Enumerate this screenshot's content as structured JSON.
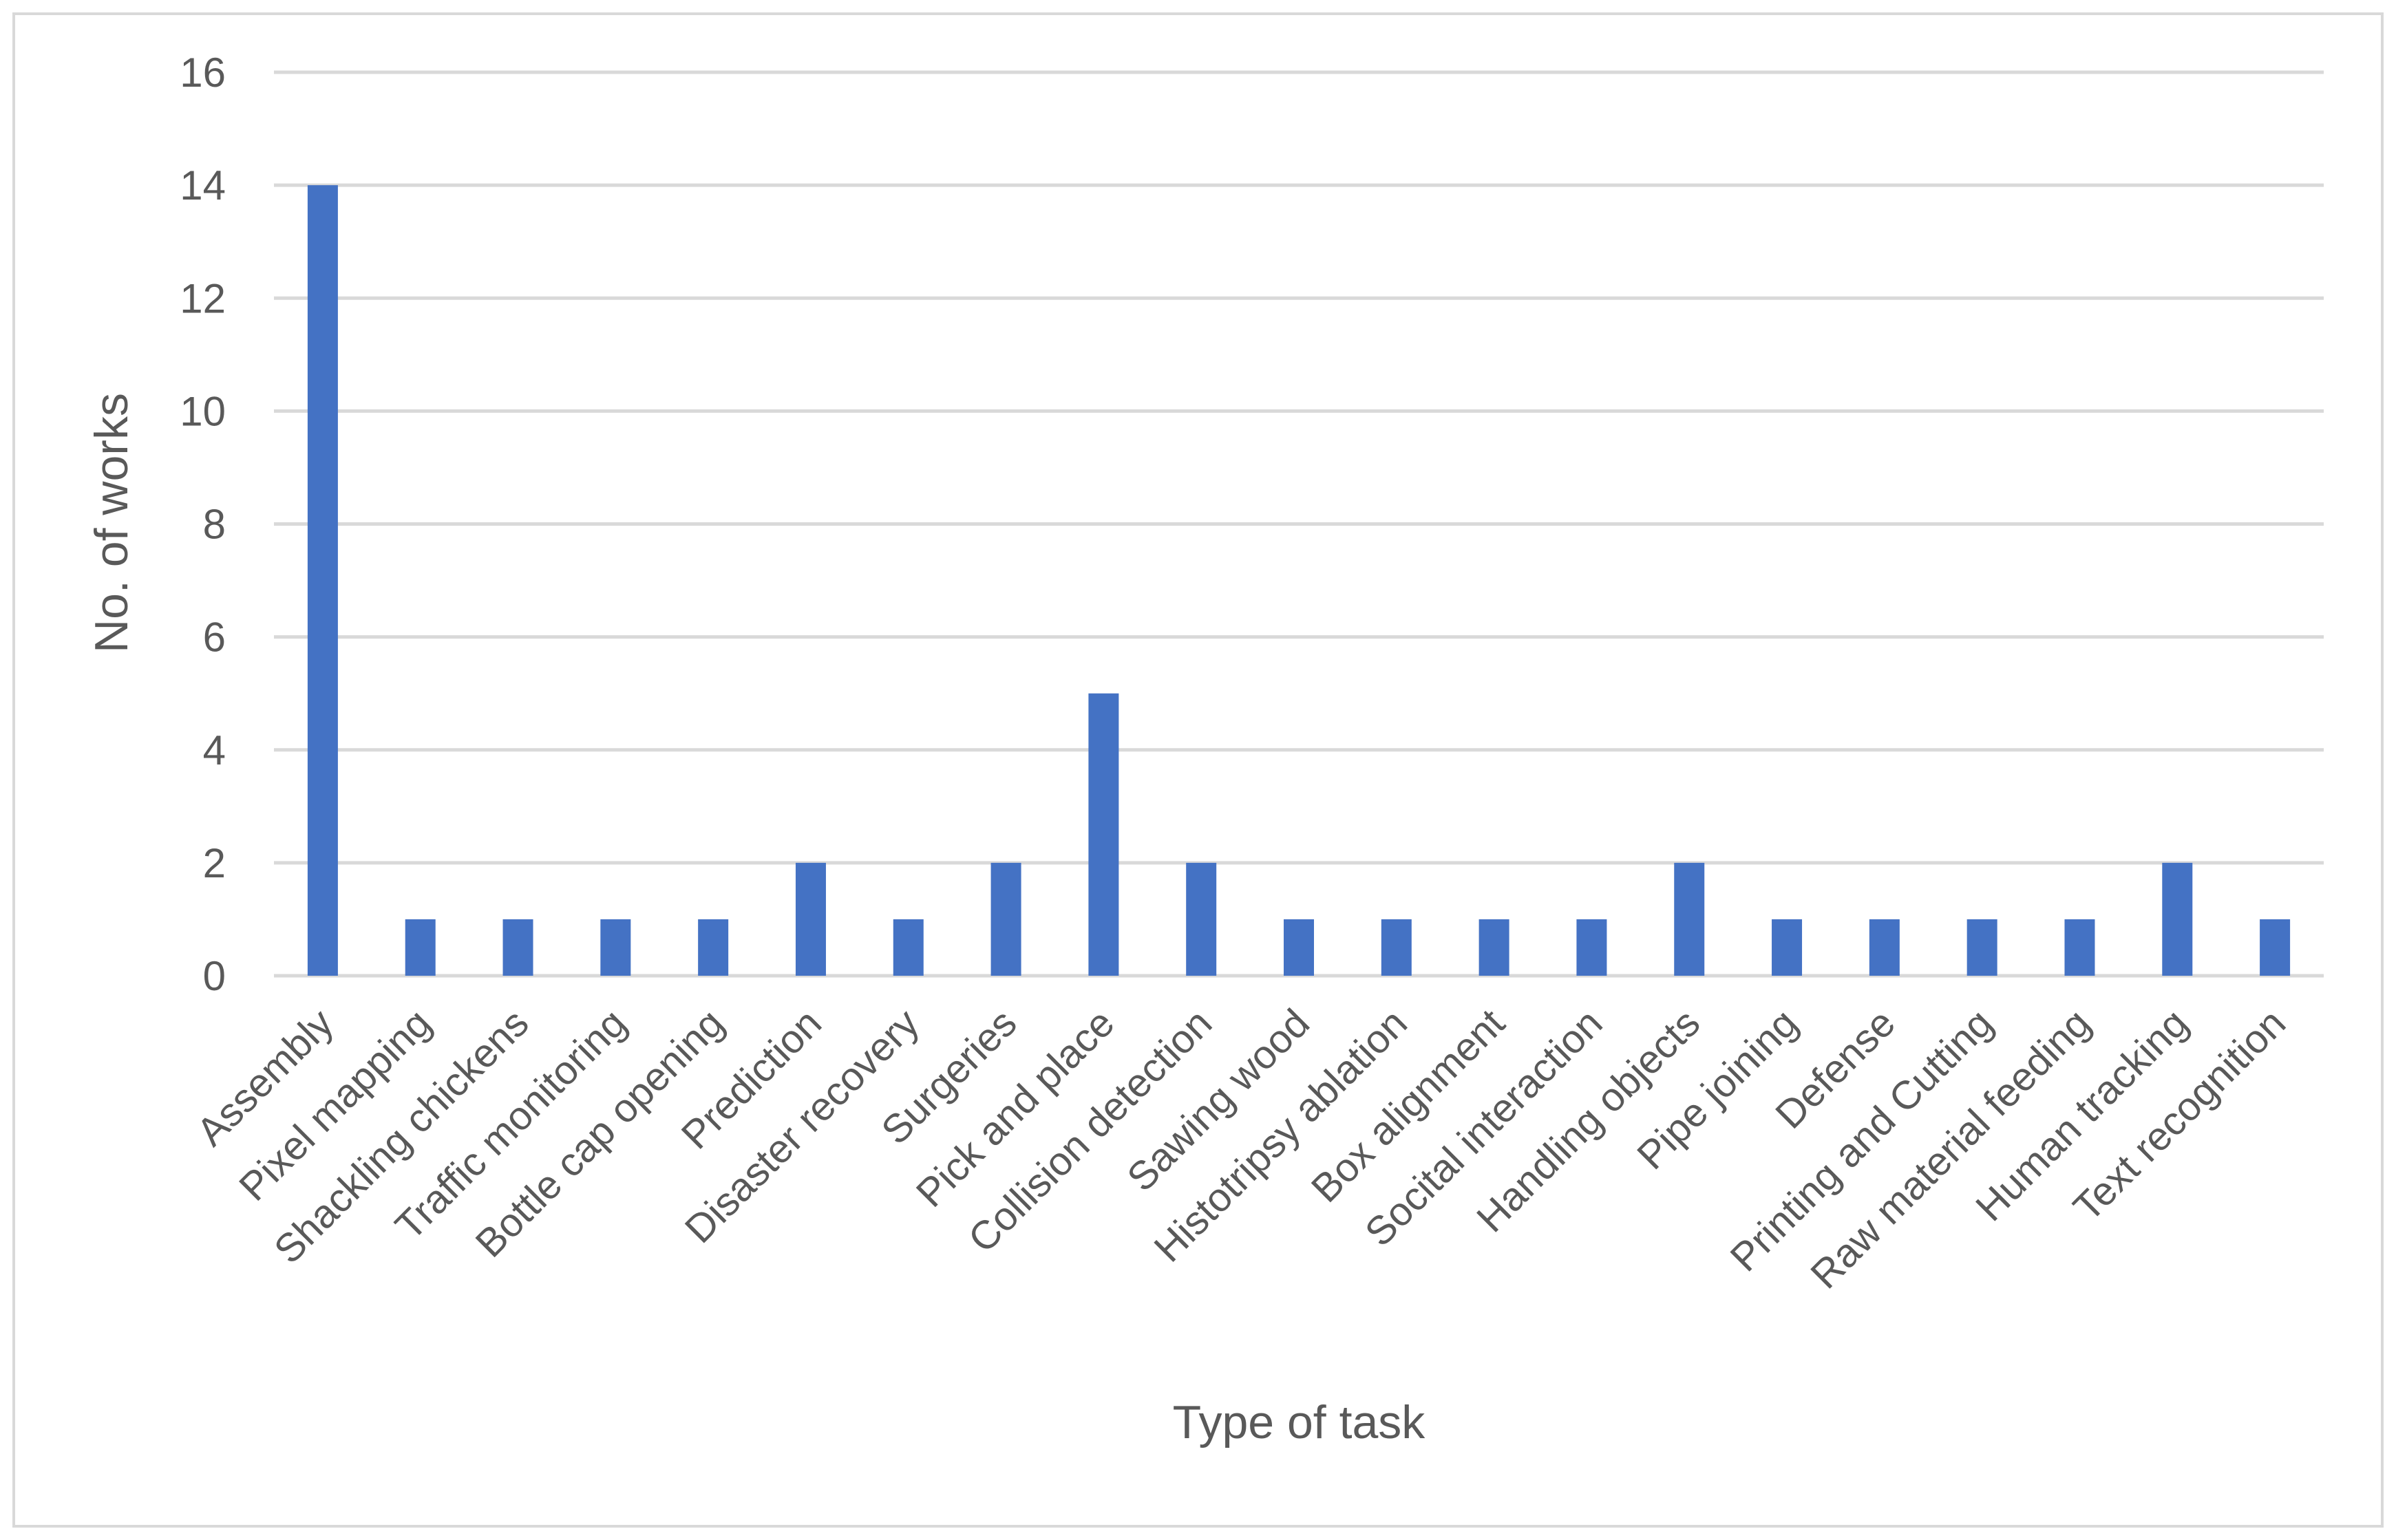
{
  "chart_data": {
    "type": "bar",
    "title": "",
    "xlabel": "Type of task",
    "ylabel": "No. of works",
    "ylim": [
      0,
      16
    ],
    "yticks": [
      0,
      2,
      4,
      6,
      8,
      10,
      12,
      14,
      16
    ],
    "grid": true,
    "legend": "none",
    "bar_color": "#4472C4",
    "categories": [
      "Assembly",
      "Pixel mapping",
      "Shackling chickens",
      "Traffic monitoring",
      "Bottle cap opening",
      "Prediction",
      "Disaster recovery",
      "Surgeries",
      "Pick and place",
      "Collision detection",
      "Sawing wood",
      "Histotripsy ablation",
      "Box alignment",
      "Socital interaction",
      "Handling objects",
      "Pipe joining",
      "Defense",
      "Printing and Cutting",
      "Raw material feeding",
      "Human tracking",
      "Text recognition"
    ],
    "values": [
      14,
      1,
      1,
      1,
      1,
      2,
      1,
      2,
      5,
      2,
      1,
      1,
      1,
      1,
      2,
      1,
      1,
      1,
      1,
      2,
      1
    ]
  }
}
